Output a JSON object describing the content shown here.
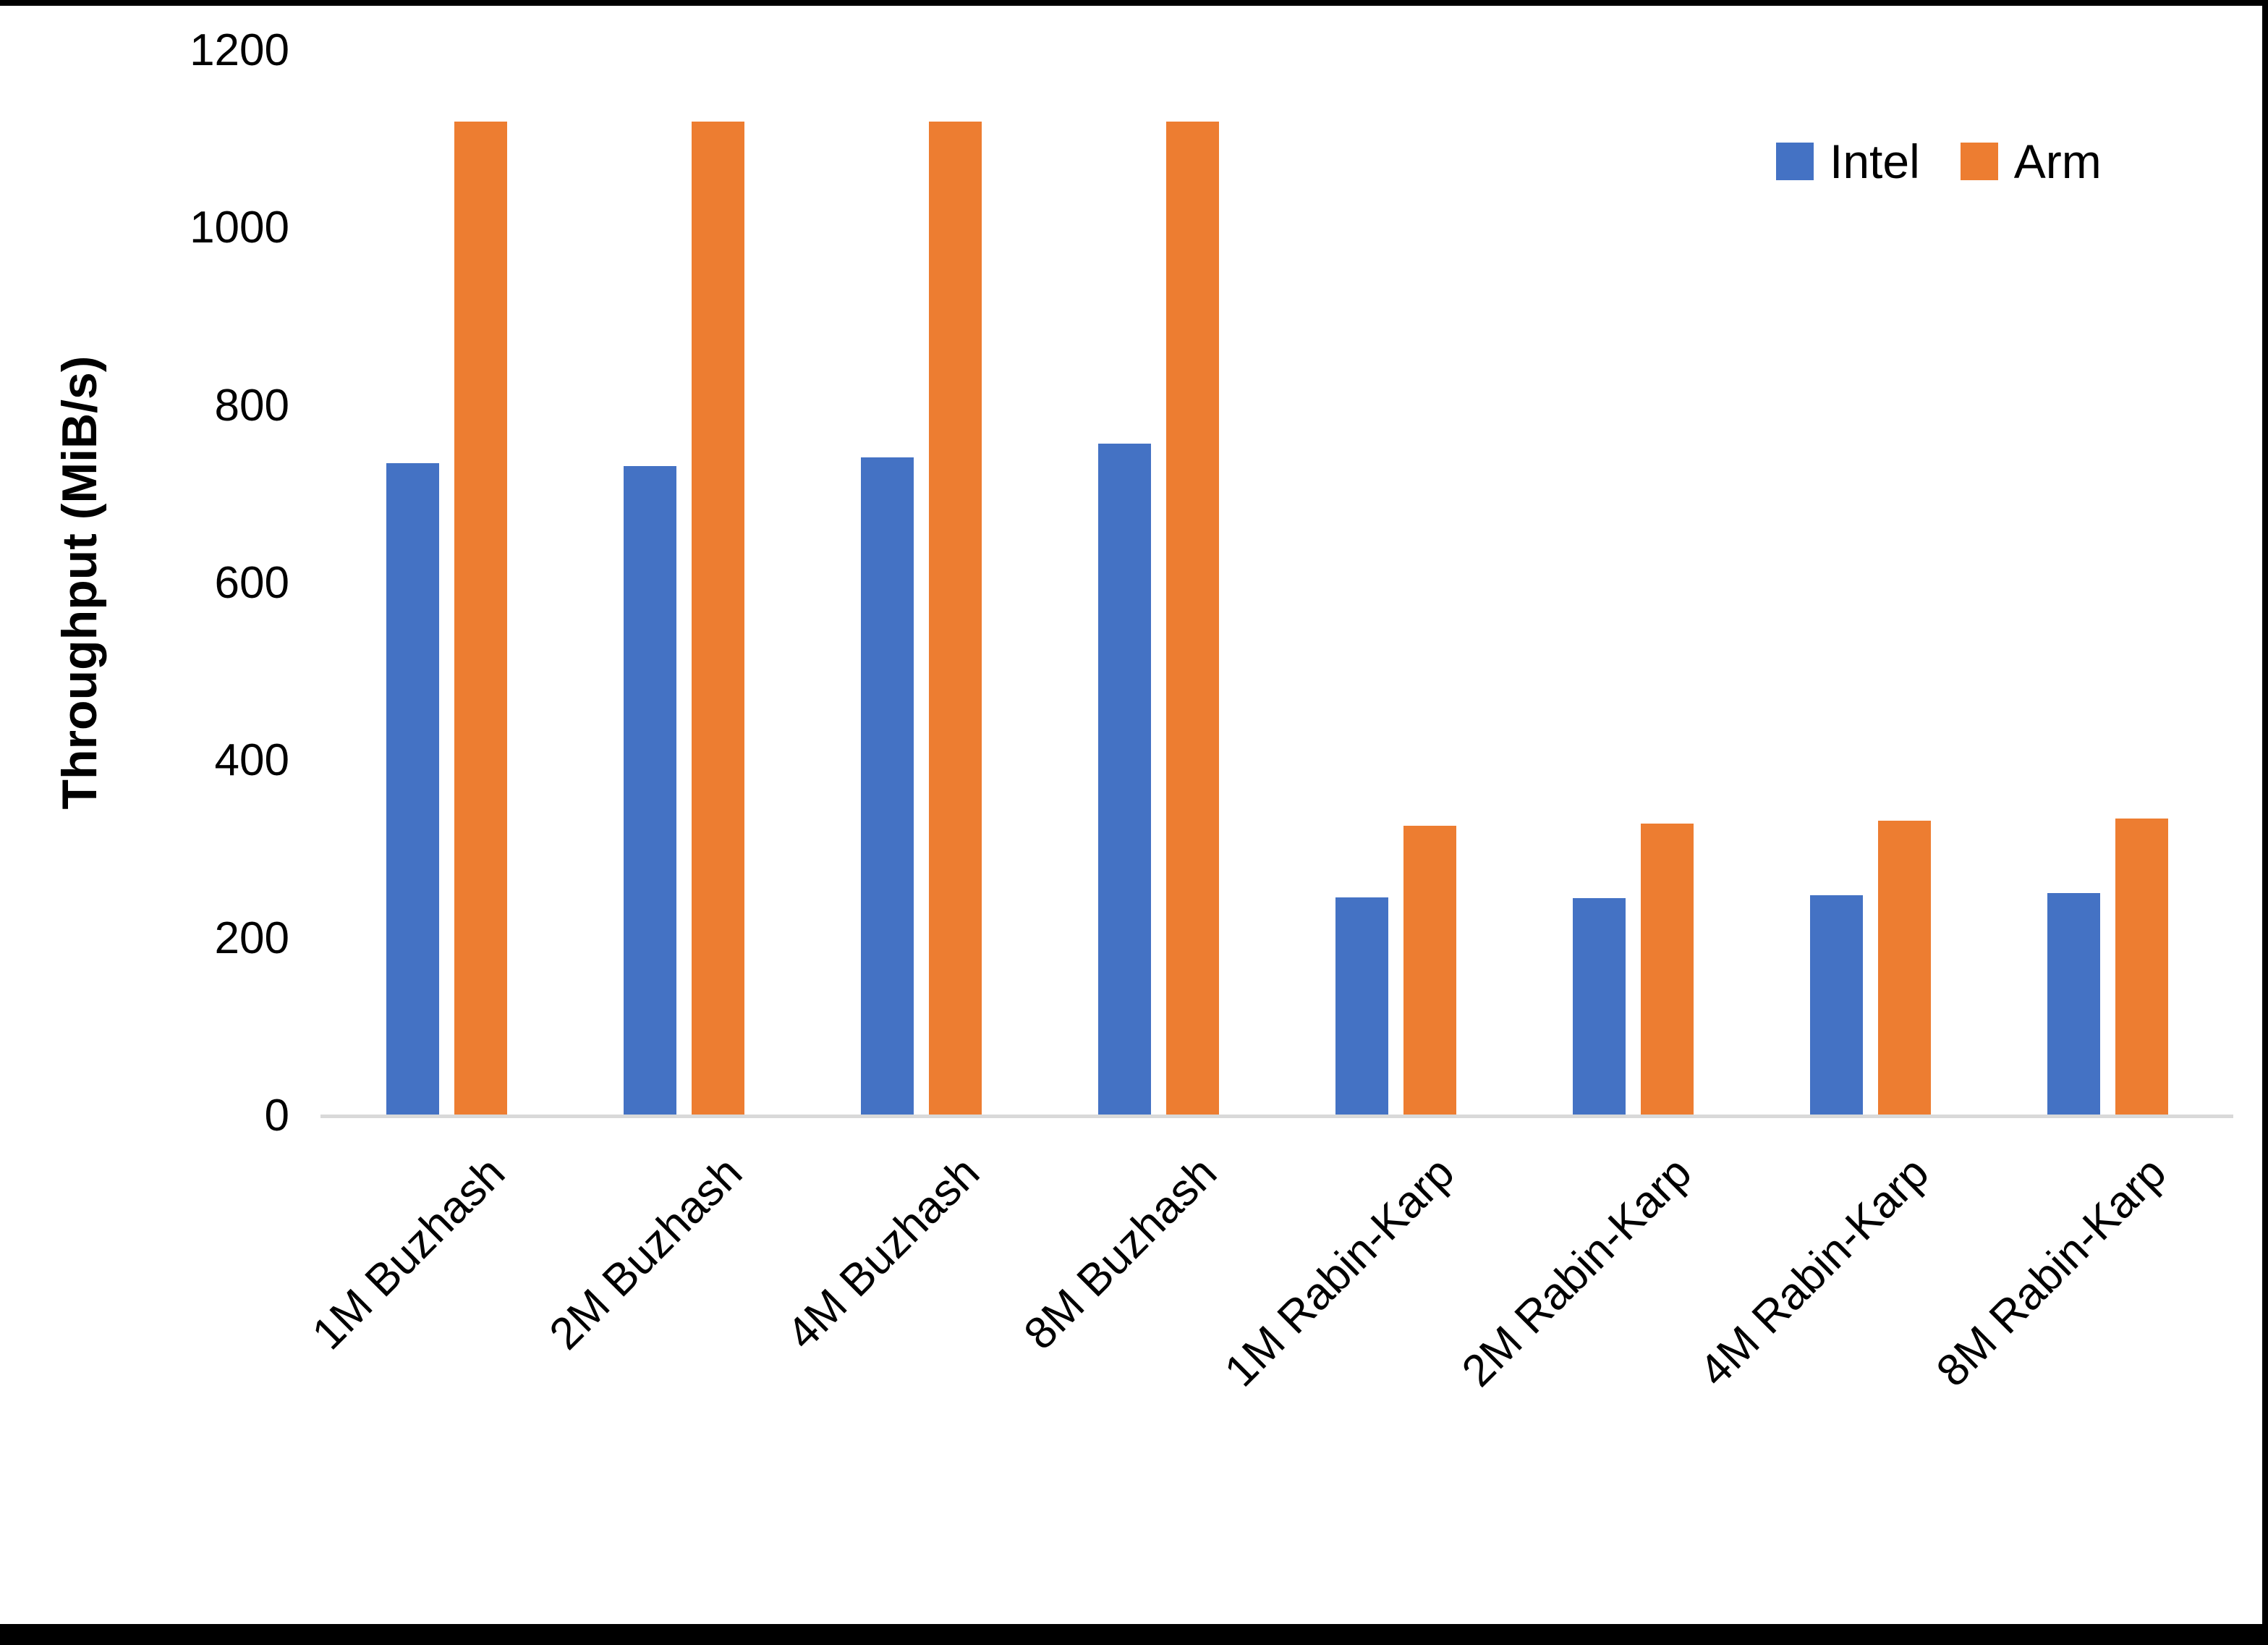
{
  "chart_data": {
    "type": "bar",
    "title": "",
    "xlabel": "",
    "ylabel": "Throughput (MiB/s)",
    "ylim": [
      0,
      1200
    ],
    "yticks": [
      0,
      200,
      400,
      600,
      800,
      1000,
      1200
    ],
    "grid": false,
    "legend_position": "top-right",
    "categories": [
      "1M Buzhash",
      "2M Buzhash",
      "4M Buzhash",
      "8M Buzhash",
      "1M Rabin-Karp",
      "2M Rabin-Karp",
      "4M Rabin-Karp",
      "8M Rabin-Karp"
    ],
    "series": [
      {
        "name": "Intel",
        "color": "#4472C4",
        "values": [
          735,
          732,
          742,
          757,
          246,
          245,
          249,
          251
        ]
      },
      {
        "name": "Arm",
        "color": "#ED7D31",
        "values": [
          1120,
          1120,
          1120,
          1120,
          327,
          329,
          333,
          335
        ]
      }
    ]
  },
  "colors": {
    "axis_line": "#D9D9D9",
    "text": "#000000",
    "background": "#FFFFFF",
    "border": "#000000"
  }
}
